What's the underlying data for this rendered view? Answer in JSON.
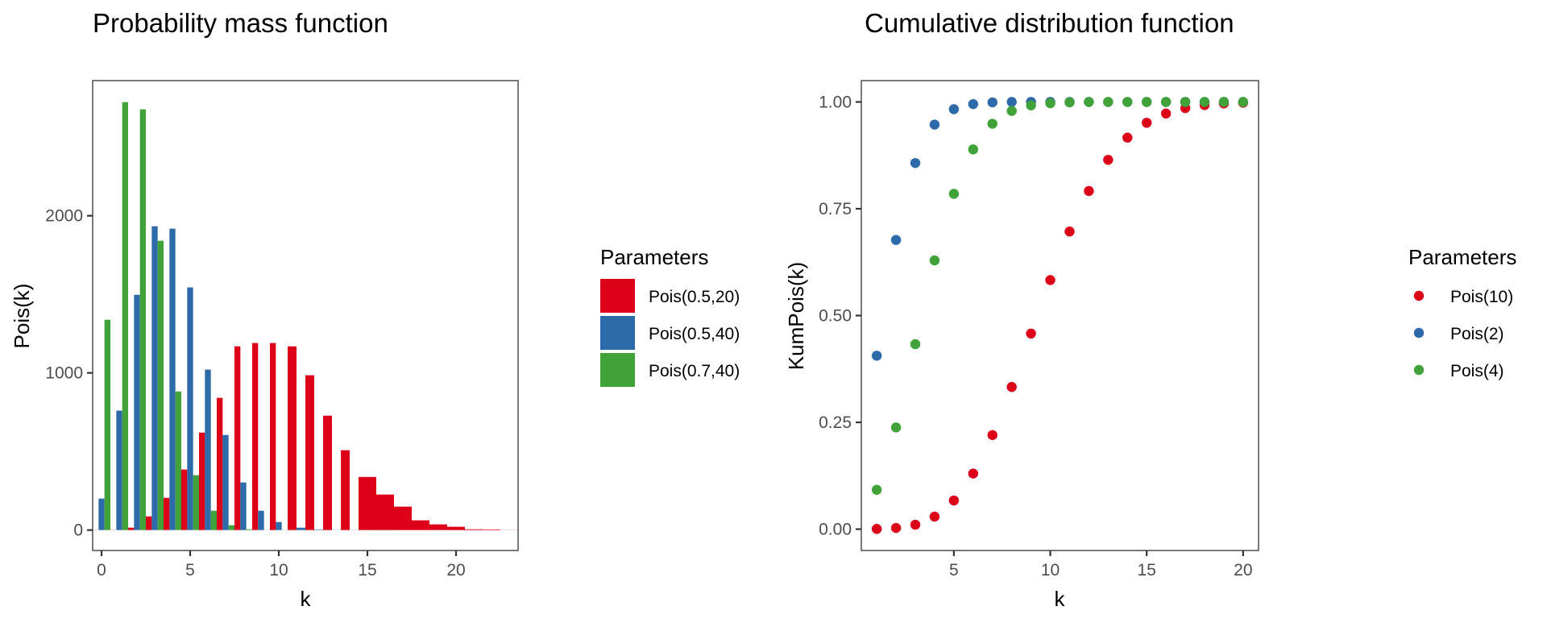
{
  "chart_data": [
    {
      "type": "bar",
      "title": "Probability mass function",
      "xlabel": "k",
      "ylabel": "Pois(k)",
      "xlim": [
        -0.5,
        23.5
      ],
      "ylim": [
        -130,
        2860
      ],
      "x_ticks": [
        0,
        5,
        10,
        15,
        20
      ],
      "y_ticks": [
        0,
        1000,
        2000
      ],
      "grid": false,
      "legend": {
        "title": "Parameters",
        "placement": "right",
        "entries": [
          "Pois(0.5,20)",
          "Pois(0.5,40)",
          "Pois(0.7,40)"
        ]
      },
      "categories": [
        0,
        1,
        2,
        3,
        4,
        5,
        6,
        7,
        8,
        9,
        10,
        11,
        12,
        13,
        14,
        15,
        16,
        17,
        18,
        19,
        20,
        21,
        22,
        23
      ],
      "series": [
        {
          "name": "Pois(0.5,20)",
          "color": "#DC0019",
          "values": [
            1,
            2,
            15,
            87,
            205,
            385,
            620,
            841,
            1169,
            1190,
            1190,
            1169,
            985,
            728,
            508,
            338,
            226,
            149,
            62,
            36,
            21,
            5,
            4,
            1
          ]
        },
        {
          "name": "Pois(0.5,40)",
          "color": "#2D6AAA",
          "values": [
            200,
            760,
            1497,
            1933,
            1918,
            1544,
            1021,
            605,
            303,
            123,
            51,
            15,
            3,
            1,
            1,
            null,
            null,
            null,
            null,
            null,
            null,
            null,
            null,
            null
          ]
        },
        {
          "name": "Pois(0.7,40)",
          "color": "#41A23A",
          "values": [
            1338,
            2723,
            2677,
            1841,
            882,
            349,
            123,
            31,
            5,
            2,
            1,
            null,
            null,
            null,
            null,
            null,
            null,
            null,
            null,
            null,
            null,
            null,
            null,
            null
          ]
        }
      ]
    },
    {
      "type": "scatter",
      "title": "Cumulative distribution function",
      "xlabel": "k",
      "ylabel": "KumPois(k)",
      "xlim": [
        0.2,
        20.8
      ],
      "ylim": [
        -0.05,
        1.05
      ],
      "x_ticks": [
        5,
        10,
        15,
        20
      ],
      "y_ticks": [
        0,
        0.25,
        0.5,
        0.75,
        1.0
      ],
      "y_tick_labels": [
        "0.00",
        "0.25",
        "0.50",
        "0.75",
        "1.00"
      ],
      "grid": false,
      "legend": {
        "title": "Parameters",
        "placement": "right",
        "entries": [
          "Pois(10)",
          "Pois(2)",
          "Pois(4)"
        ]
      },
      "x": [
        1,
        2,
        3,
        4,
        5,
        6,
        7,
        8,
        9,
        10,
        11,
        12,
        13,
        14,
        15,
        16,
        17,
        18,
        19,
        20
      ],
      "series": [
        {
          "name": "Pois(10)",
          "color": "#DC0019",
          "values": [
            0.0005,
            0.0028,
            0.0103,
            0.0293,
            0.0671,
            0.1301,
            0.2202,
            0.3328,
            0.4579,
            0.583,
            0.6968,
            0.7916,
            0.8645,
            0.9165,
            0.9513,
            0.973,
            0.9857,
            0.9928,
            0.9965,
            0.9984
          ]
        },
        {
          "name": "Pois(2)",
          "color": "#2D6AAA",
          "values": [
            0.406,
            0.677,
            0.857,
            0.947,
            0.983,
            0.995,
            0.999,
            1.0,
            1.0,
            1.0,
            1.0,
            1.0,
            1.0,
            1.0,
            1.0,
            1.0,
            1.0,
            1.0,
            1.0,
            1.0
          ]
        },
        {
          "name": "Pois(4)",
          "color": "#41A23A",
          "values": [
            0.092,
            0.238,
            0.433,
            0.629,
            0.785,
            0.889,
            0.949,
            0.979,
            0.992,
            0.997,
            0.999,
            1.0,
            1.0,
            1.0,
            1.0,
            1.0,
            1.0,
            1.0,
            1.0,
            1.0
          ]
        }
      ]
    }
  ]
}
